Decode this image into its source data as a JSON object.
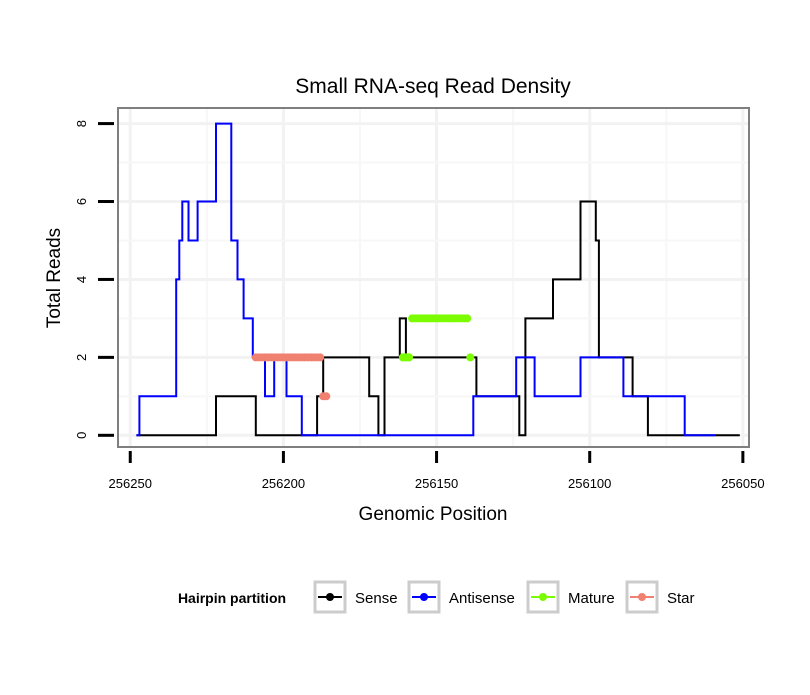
{
  "chart_data": {
    "type": "line",
    "title": "Small RNA-seq Read Density",
    "xlabel": "Genomic Position",
    "ylabel": "Total Reads",
    "x_reversed": true,
    "xlim": [
      256254,
      256048
    ],
    "ylim": [
      -0.3,
      8.4
    ],
    "xticks": [
      256250,
      256200,
      256150,
      256100,
      256050
    ],
    "xtick_labels": [
      "256250",
      "256200",
      "256150",
      "256100",
      "256050"
    ],
    "yticks": [
      0,
      2,
      4,
      6,
      8
    ],
    "ytick_labels": [
      "0",
      "2",
      "4",
      "6",
      "8"
    ],
    "grid": true,
    "legend": {
      "title": "Hairpin partition",
      "position": "bottom",
      "entries": [
        {
          "name": "Sense",
          "color": "#000000"
        },
        {
          "name": "Antisense",
          "color": "#0000ff"
        },
        {
          "name": "Mature",
          "color": "#7cfc00"
        },
        {
          "name": "Star",
          "color": "#f08070"
        }
      ]
    },
    "series": [
      {
        "name": "Sense",
        "color": "#000000",
        "style": "step",
        "x": [
          256248,
          256222,
          256222,
          256209,
          256209,
          256189,
          256189,
          256187,
          256187,
          256172,
          256172,
          256169,
          256169,
          256167,
          256167,
          256162,
          256162,
          256160,
          256160,
          256137,
          256137,
          256123,
          256123,
          256121,
          256121,
          256112,
          256112,
          256103,
          256103,
          256098,
          256098,
          256097,
          256097,
          256086,
          256086,
          256081,
          256081,
          256074,
          256074,
          256064,
          256064,
          256051
        ],
        "y": [
          0,
          0,
          1,
          1,
          0,
          0,
          1,
          1,
          2,
          2,
          1,
          1,
          0,
          0,
          2,
          2,
          3,
          3,
          2,
          2,
          1,
          1,
          0,
          0,
          3,
          3,
          4,
          4,
          6,
          6,
          5,
          5,
          2,
          2,
          1,
          1,
          0,
          0,
          0,
          0,
          0,
          0
        ]
      },
      {
        "name": "Antisense",
        "color": "#0000ff",
        "style": "step",
        "x": [
          256248,
          256247,
          256247,
          256235,
          256235,
          256234,
          256234,
          256233,
          256233,
          256231,
          256231,
          256230,
          256230,
          256228,
          256228,
          256227,
          256227,
          256226,
          256226,
          256222,
          256222,
          256219,
          256219,
          256217,
          256217,
          256215,
          256215,
          256213,
          256213,
          256210,
          256210,
          256206,
          256206,
          256203,
          256203,
          256202,
          256202,
          256200,
          256200,
          256199,
          256199,
          256197,
          256197,
          256195,
          256195,
          256194,
          256194,
          256182,
          256182,
          256175,
          256175,
          256163,
          256163,
          256138,
          256138,
          256124,
          256124,
          256118,
          256118,
          256109,
          256109,
          256103,
          256103,
          256094,
          256094,
          256089,
          256089,
          256082,
          256082,
          256072,
          256072,
          256071,
          256071,
          256069,
          256069,
          256059
        ],
        "y": [
          0,
          0,
          1,
          1,
          4,
          4,
          5,
          5,
          6,
          6,
          5,
          5,
          5,
          5,
          6,
          6,
          6,
          6,
          6,
          6,
          8,
          8,
          8,
          8,
          5,
          5,
          4,
          4,
          3,
          3,
          2,
          2,
          1,
          1,
          2,
          2,
          2,
          2,
          2,
          2,
          1,
          1,
          1,
          1,
          1,
          1,
          0,
          0,
          0,
          0,
          0,
          0,
          0,
          0,
          1,
          1,
          2,
          2,
          1,
          1,
          1,
          1,
          2,
          2,
          2,
          2,
          1,
          1,
          1,
          1,
          1,
          1,
          1,
          1,
          0,
          0
        ]
      },
      {
        "name": "Mature",
        "color": "#7cfc00",
        "style": "points",
        "x": [
          256161,
          256160,
          256159,
          256158,
          256157,
          256156,
          256155,
          256154,
          256153,
          256152,
          256151,
          256150,
          256149,
          256148,
          256147,
          256146,
          256145,
          256144,
          256143,
          256142,
          256141,
          256140,
          256159,
          256160,
          256161,
          256139
        ],
        "y": [
          2,
          2,
          2,
          3,
          3,
          3,
          3,
          3,
          3,
          3,
          3,
          3,
          3,
          3,
          3,
          3,
          3,
          3,
          3,
          3,
          3,
          3,
          2,
          2,
          2,
          2
        ]
      },
      {
        "name": "Star",
        "color": "#f08070",
        "style": "points",
        "x": [
          256209,
          256208,
          256207,
          256206,
          256205,
          256204,
          256203,
          256202,
          256201,
          256200,
          256199,
          256198,
          256197,
          256196,
          256195,
          256194,
          256193,
          256192,
          256191,
          256190,
          256189,
          256188,
          256187,
          256186
        ],
        "y": [
          2,
          2,
          2,
          2,
          2,
          2,
          2,
          2,
          2,
          2,
          2,
          2,
          2,
          2,
          2,
          2,
          2,
          2,
          2,
          2,
          2,
          2,
          1,
          1
        ]
      }
    ]
  }
}
